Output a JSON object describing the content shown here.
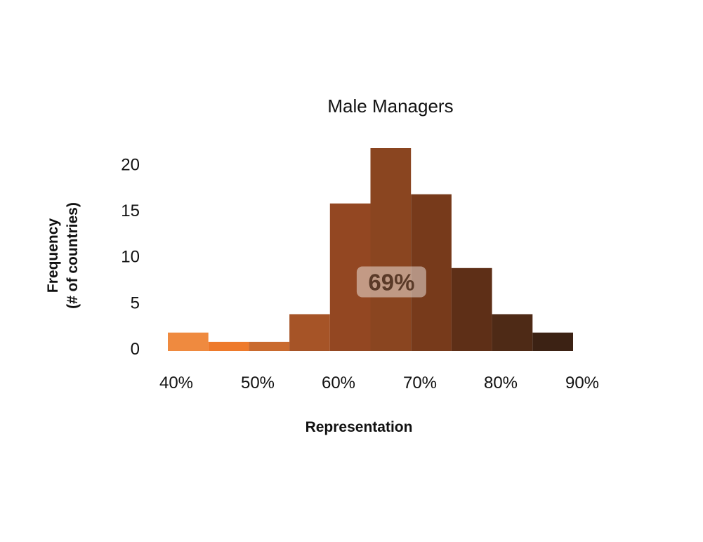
{
  "chart_data": {
    "type": "bar",
    "title": "Male Managers",
    "xlabel": "Representation",
    "ylabel": "Frequency",
    "ylabel_sub": "(# of countries)",
    "bins": [
      {
        "start": 40,
        "end": 45,
        "value": 2,
        "color": "#ef8a3f"
      },
      {
        "start": 45,
        "end": 50,
        "value": 1,
        "color": "#ee7a2b"
      },
      {
        "start": 50,
        "end": 55,
        "value": 1,
        "color": "#c96a2e"
      },
      {
        "start": 55,
        "end": 60,
        "value": 4,
        "color": "#a65427"
      },
      {
        "start": 60,
        "end": 65,
        "value": 16,
        "color": "#934722"
      },
      {
        "start": 65,
        "end": 70,
        "value": 22,
        "color": "#8a4520"
      },
      {
        "start": 70,
        "end": 75,
        "value": 17,
        "color": "#773a1b"
      },
      {
        "start": 75,
        "end": 80,
        "value": 9,
        "color": "#5e2f17"
      },
      {
        "start": 80,
        "end": 85,
        "value": 4,
        "color": "#4e2a16"
      },
      {
        "start": 85,
        "end": 90,
        "value": 2,
        "color": "#3c2214"
      }
    ],
    "xticks": [
      "40%",
      "50%",
      "60%",
      "70%",
      "80%",
      "90%"
    ],
    "xtick_values": [
      40,
      50,
      60,
      70,
      80,
      90
    ],
    "yticks": [
      "0",
      "5",
      "10",
      "15",
      "20"
    ],
    "ytick_values": [
      0,
      5,
      10,
      15,
      20
    ],
    "xlim": [
      40,
      90
    ],
    "ylim": [
      0,
      22
    ],
    "grid": false,
    "annotation": {
      "text": "69%",
      "x": 67.5,
      "y": 7.5
    }
  }
}
